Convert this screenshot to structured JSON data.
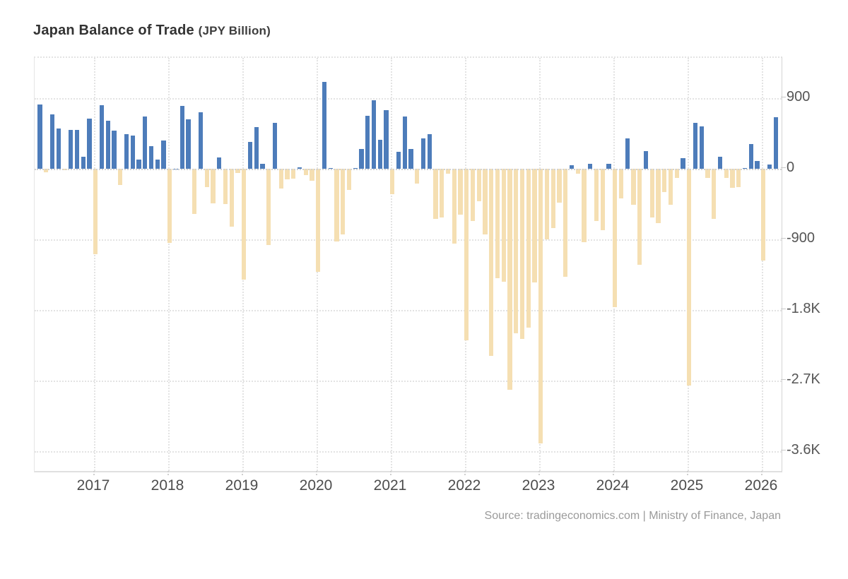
{
  "header": {
    "title": "Japan Balance of Trade",
    "unit_label": "(JPY Billion)"
  },
  "footer": {
    "source": "Source: tradingeconomics.com | Ministry of Finance, Japan"
  },
  "chart_data": {
    "type": "bar",
    "title": "Japan Balance of Trade",
    "ylabel": "",
    "xlabel": "",
    "unit": "JPY Billion",
    "grid": "dotted",
    "legend": "none",
    "y_axis_side": "right",
    "ylim": [
      -3850,
      1415
    ],
    "y_ticks": [
      {
        "label": "900",
        "value": 900
      },
      {
        "label": "0",
        "value": 0
      },
      {
        "label": "-900",
        "value": -900
      },
      {
        "label": "-1.8K",
        "value": -1800
      },
      {
        "label": "-2.7K",
        "value": -2700
      },
      {
        "label": "-3.6K",
        "value": -3600
      }
    ],
    "x_tick_labels": [
      "2017",
      "2018",
      "2019",
      "2020",
      "2021",
      "2022",
      "2023",
      "2024",
      "2025",
      "2026"
    ],
    "colors": {
      "positive_bar": "#4d7cba",
      "negative_bar": "#f5dfb2",
      "gridline": "#e3e3e3",
      "axis_line": "#d4d4d4",
      "tick_text": "#555555",
      "title_text": "#333333",
      "source_text": "#9a9a9a"
    },
    "series": [
      {
        "date": "2016-04",
        "value": 823
      },
      {
        "date": "2016-05",
        "value": -41
      },
      {
        "date": "2016-06",
        "value": 693
      },
      {
        "date": "2016-07",
        "value": 514
      },
      {
        "date": "2016-08",
        "value": -19
      },
      {
        "date": "2016-09",
        "value": 498
      },
      {
        "date": "2016-10",
        "value": 496
      },
      {
        "date": "2016-11",
        "value": 152
      },
      {
        "date": "2016-12",
        "value": 641
      },
      {
        "date": "2017-01",
        "value": -1087
      },
      {
        "date": "2017-02",
        "value": 813
      },
      {
        "date": "2017-03",
        "value": 615
      },
      {
        "date": "2017-04",
        "value": 482
      },
      {
        "date": "2017-05",
        "value": -203
      },
      {
        "date": "2017-06",
        "value": 440
      },
      {
        "date": "2017-07",
        "value": 419
      },
      {
        "date": "2017-08",
        "value": 113
      },
      {
        "date": "2017-09",
        "value": 667
      },
      {
        "date": "2017-10",
        "value": 285
      },
      {
        "date": "2017-11",
        "value": 113
      },
      {
        "date": "2017-12",
        "value": 359
      },
      {
        "date": "2018-01",
        "value": -943
      },
      {
        "date": "2018-02",
        "value": 3
      },
      {
        "date": "2018-03",
        "value": 797
      },
      {
        "date": "2018-04",
        "value": 626
      },
      {
        "date": "2018-05",
        "value": -578
      },
      {
        "date": "2018-06",
        "value": 721
      },
      {
        "date": "2018-07",
        "value": -231
      },
      {
        "date": "2018-08",
        "value": -445
      },
      {
        "date": "2018-09",
        "value": 140
      },
      {
        "date": "2018-10",
        "value": -450
      },
      {
        "date": "2018-11",
        "value": -737
      },
      {
        "date": "2018-12",
        "value": -55
      },
      {
        "date": "2019-01",
        "value": -1415
      },
      {
        "date": "2019-02",
        "value": 339
      },
      {
        "date": "2019-03",
        "value": 529
      },
      {
        "date": "2019-04",
        "value": 60
      },
      {
        "date": "2019-05",
        "value": -968
      },
      {
        "date": "2019-06",
        "value": 589
      },
      {
        "date": "2019-07",
        "value": -250
      },
      {
        "date": "2019-08",
        "value": -136
      },
      {
        "date": "2019-09",
        "value": -123
      },
      {
        "date": "2019-10",
        "value": 17
      },
      {
        "date": "2019-11",
        "value": -82
      },
      {
        "date": "2019-12",
        "value": -152
      },
      {
        "date": "2020-01",
        "value": -1313
      },
      {
        "date": "2020-02",
        "value": 1109
      },
      {
        "date": "2020-03",
        "value": 5
      },
      {
        "date": "2020-04",
        "value": -930
      },
      {
        "date": "2020-05",
        "value": -833
      },
      {
        "date": "2020-06",
        "value": -269
      },
      {
        "date": "2020-07",
        "value": 12
      },
      {
        "date": "2020-08",
        "value": 248
      },
      {
        "date": "2020-09",
        "value": 675
      },
      {
        "date": "2020-10",
        "value": 872
      },
      {
        "date": "2020-11",
        "value": 367
      },
      {
        "date": "2020-12",
        "value": 751
      },
      {
        "date": "2021-01",
        "value": -324
      },
      {
        "date": "2021-02",
        "value": 217
      },
      {
        "date": "2021-03",
        "value": 664
      },
      {
        "date": "2021-04",
        "value": 255
      },
      {
        "date": "2021-05",
        "value": -189
      },
      {
        "date": "2021-06",
        "value": 384
      },
      {
        "date": "2021-07",
        "value": 441
      },
      {
        "date": "2021-08",
        "value": -636
      },
      {
        "date": "2021-09",
        "value": -623
      },
      {
        "date": "2021-10",
        "value": -67
      },
      {
        "date": "2021-11",
        "value": -955
      },
      {
        "date": "2021-12",
        "value": -582
      },
      {
        "date": "2022-01",
        "value": -2191
      },
      {
        "date": "2022-02",
        "value": -669
      },
      {
        "date": "2022-03",
        "value": -414
      },
      {
        "date": "2022-04",
        "value": -839
      },
      {
        "date": "2022-05",
        "value": -2385
      },
      {
        "date": "2022-06",
        "value": -1398
      },
      {
        "date": "2022-07",
        "value": -1437
      },
      {
        "date": "2022-08",
        "value": -2817
      },
      {
        "date": "2022-09",
        "value": -2094
      },
      {
        "date": "2022-10",
        "value": -2166
      },
      {
        "date": "2022-11",
        "value": -2028
      },
      {
        "date": "2022-12",
        "value": -1448
      },
      {
        "date": "2023-01",
        "value": -3497
      },
      {
        "date": "2023-02",
        "value": -898
      },
      {
        "date": "2023-03",
        "value": -755
      },
      {
        "date": "2023-04",
        "value": -432
      },
      {
        "date": "2023-05",
        "value": -1373
      },
      {
        "date": "2023-06",
        "value": 43
      },
      {
        "date": "2023-07",
        "value": -66
      },
      {
        "date": "2023-08",
        "value": -938
      },
      {
        "date": "2023-09",
        "value": 62
      },
      {
        "date": "2023-10",
        "value": -663
      },
      {
        "date": "2023-11",
        "value": -780
      },
      {
        "date": "2023-12",
        "value": 62
      },
      {
        "date": "2024-01",
        "value": -1760
      },
      {
        "date": "2024-02",
        "value": -379
      },
      {
        "date": "2024-03",
        "value": 387
      },
      {
        "date": "2024-04",
        "value": -463
      },
      {
        "date": "2024-05",
        "value": -1221
      },
      {
        "date": "2024-06",
        "value": 224
      },
      {
        "date": "2024-07",
        "value": -622
      },
      {
        "date": "2024-08",
        "value": -695
      },
      {
        "date": "2024-09",
        "value": -294
      },
      {
        "date": "2024-10",
        "value": -462
      },
      {
        "date": "2024-11",
        "value": -117
      },
      {
        "date": "2024-12",
        "value": 131
      },
      {
        "date": "2025-01",
        "value": -2759
      },
      {
        "date": "2025-02",
        "value": 584
      },
      {
        "date": "2025-03",
        "value": 544
      },
      {
        "date": "2025-04",
        "value": -116
      },
      {
        "date": "2025-05",
        "value": -638
      },
      {
        "date": "2025-06",
        "value": 153
      },
      {
        "date": "2025-07",
        "value": -118
      },
      {
        "date": "2025-08",
        "value": -242
      },
      {
        "date": "2025-09",
        "value": -235
      },
      {
        "date": "2025-10",
        "value": 5
      },
      {
        "date": "2025-11",
        "value": 315
      },
      {
        "date": "2025-12",
        "value": 100
      },
      {
        "date": "2026-01",
        "value": -1170
      },
      {
        "date": "2026-02",
        "value": 55
      },
      {
        "date": "2026-03",
        "value": 660
      }
    ]
  }
}
